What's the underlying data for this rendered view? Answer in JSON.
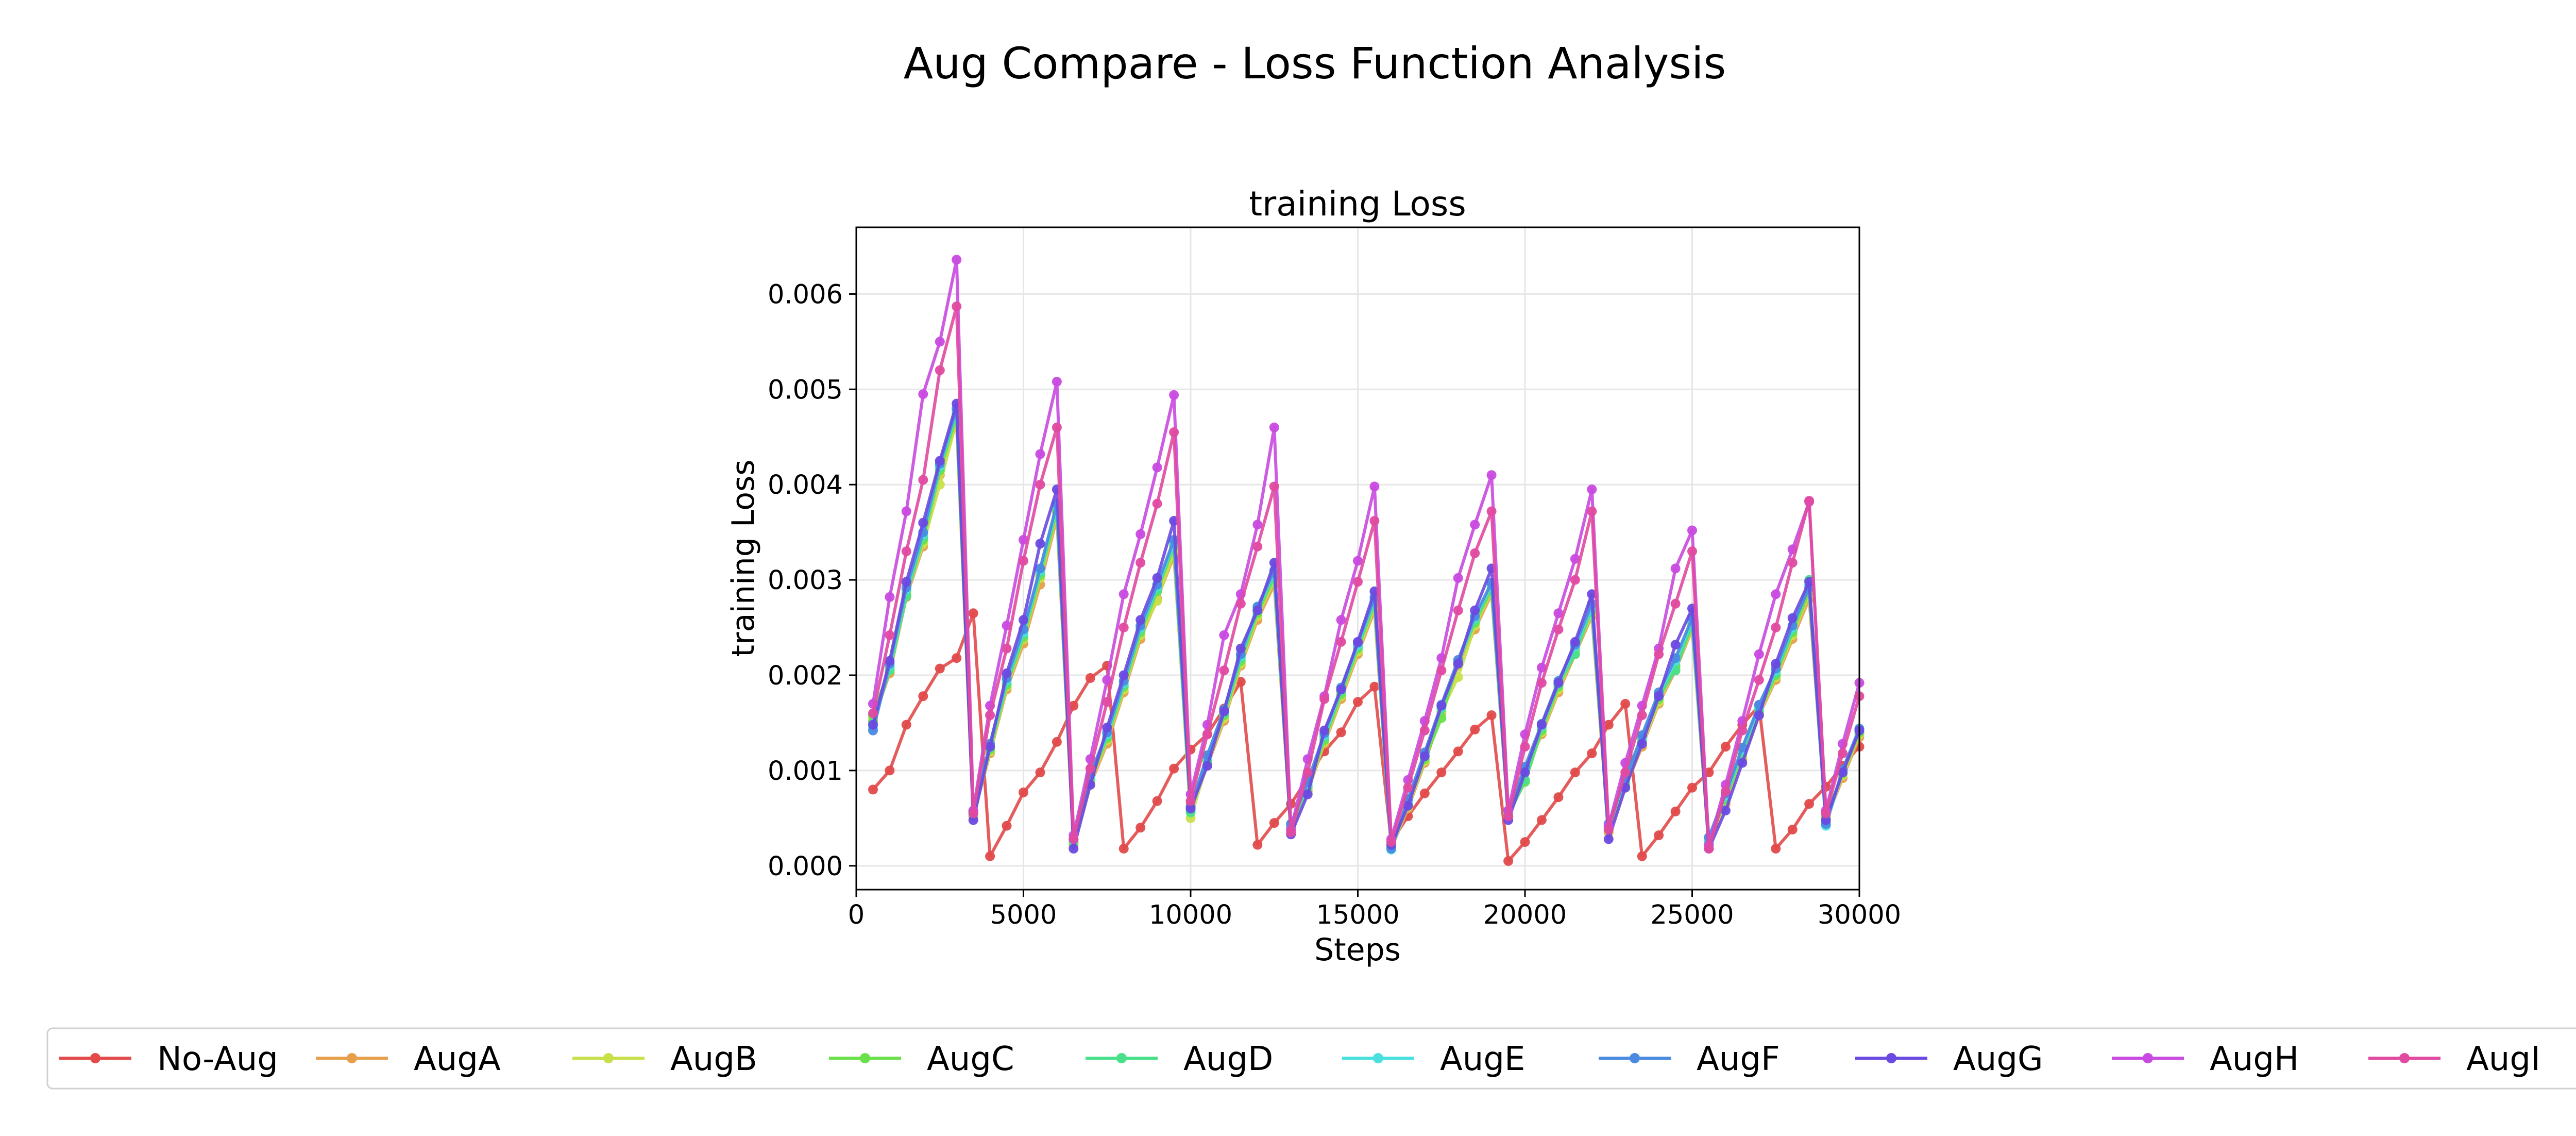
{
  "figure": {
    "suptitle": "Aug Compare - Loss Function Analysis"
  },
  "chart_data": {
    "type": "line",
    "title": "training Loss",
    "xlabel": "Steps",
    "ylabel": "training Loss",
    "xlim": [
      0,
      30000
    ],
    "ylim": [
      -0.00025,
      0.0067
    ],
    "xticks": [
      0,
      5000,
      10000,
      15000,
      20000,
      25000,
      30000
    ],
    "xtick_labels": [
      "0",
      "5000",
      "10000",
      "15000",
      "20000",
      "25000",
      "30000"
    ],
    "yticks": [
      0,
      0.001,
      0.002,
      0.003,
      0.004,
      0.005,
      0.006
    ],
    "ytick_labels": [
      "0.000",
      "0.001",
      "0.002",
      "0.003",
      "0.004",
      "0.005",
      "0.006"
    ],
    "grid": true,
    "legend_position": "bottom",
    "x": [
      500,
      1000,
      1500,
      2000,
      2500,
      3000,
      3500,
      4000,
      4500,
      5000,
      5500,
      6000,
      6500,
      7000,
      7500,
      8000,
      8500,
      9000,
      9500,
      10000,
      10500,
      11000,
      11500,
      12000,
      12500,
      13000,
      13500,
      14000,
      14500,
      15000,
      15500,
      16000,
      16500,
      17000,
      17500,
      18000,
      18500,
      19000,
      19500,
      20000,
      20500,
      21000,
      21500,
      22000,
      22500,
      23000,
      23500,
      24000,
      24500,
      25000,
      25500,
      26000,
      26500,
      27000,
      27500,
      28000,
      28500,
      29000,
      29500,
      30000
    ],
    "series": [
      {
        "name": "No-Aug",
        "color": "#e24a4a",
        "values": [
          0.0008,
          0.001,
          0.00148,
          0.00178,
          0.00207,
          0.00218,
          0.00265,
          0.0001,
          0.00042,
          0.00077,
          0.00098,
          0.0013,
          0.00168,
          0.00197,
          0.0021,
          0.00018,
          0.0004,
          0.00068,
          0.00102,
          0.00122,
          0.00138,
          0.00165,
          0.00193,
          0.00022,
          0.00045,
          0.00065,
          0.00092,
          0.0012,
          0.0014,
          0.00172,
          0.00188,
          0.00025,
          0.00052,
          0.00076,
          0.00098,
          0.0012,
          0.00143,
          0.00158,
          5e-05,
          0.00025,
          0.00048,
          0.00072,
          0.00098,
          0.00118,
          0.00148,
          0.0017,
          0.0001,
          0.00032,
          0.00057,
          0.00082,
          0.00098,
          0.00125,
          0.00148,
          0.00168,
          0.00018,
          0.00038,
          0.00065,
          0.00083,
          0.00105,
          0.00125
        ]
      },
      {
        "name": "AugA",
        "color": "#e6a04b",
        "values": [
          0.00152,
          0.00202,
          0.00282,
          0.00335,
          0.0041,
          0.00465,
          0.00052,
          0.00118,
          0.00185,
          0.00233,
          0.00295,
          0.00365,
          0.00022,
          0.00085,
          0.00128,
          0.00182,
          0.00238,
          0.0028,
          0.00325,
          0.00065,
          0.00105,
          0.00152,
          0.0021,
          0.00258,
          0.00295,
          0.00038,
          0.00078,
          0.00128,
          0.00175,
          0.00222,
          0.00268,
          0.00018,
          0.0006,
          0.00108,
          0.0016,
          0.0021,
          0.00248,
          0.00285,
          0.00052,
          0.00098,
          0.00138,
          0.00182,
          0.00222,
          0.00262,
          0.00035,
          0.00082,
          0.00125,
          0.0017,
          0.00205,
          0.00248,
          0.00022,
          0.00065,
          0.00112,
          0.00158,
          0.00195,
          0.00238,
          0.0028,
          0.00048,
          0.00092,
          0.00135
        ]
      },
      {
        "name": "AugB",
        "color": "#c9e04a",
        "values": [
          0.00155,
          0.00205,
          0.00285,
          0.00338,
          0.004,
          0.00468,
          0.00055,
          0.0012,
          0.00188,
          0.00238,
          0.00302,
          0.0037,
          0.00025,
          0.00088,
          0.00132,
          0.00185,
          0.00242,
          0.00278,
          0.0033,
          0.0005,
          0.00108,
          0.00155,
          0.00212,
          0.00262,
          0.003,
          0.0004,
          0.0008,
          0.0013,
          0.00178,
          0.00225,
          0.00272,
          0.0002,
          0.00062,
          0.0011,
          0.00162,
          0.00198,
          0.00252,
          0.00288,
          0.00055,
          0.001,
          0.0014,
          0.00185,
          0.00225,
          0.00265,
          0.00037,
          0.00085,
          0.00128,
          0.00172,
          0.00208,
          0.0025,
          0.00025,
          0.00068,
          0.00115,
          0.0016,
          0.00198,
          0.00242,
          0.00285,
          0.0005,
          0.00095,
          0.00138
        ]
      },
      {
        "name": "AugC",
        "color": "#6ae04a",
        "values": [
          0.00158,
          0.00208,
          0.00288,
          0.00342,
          0.00415,
          0.00472,
          0.00056,
          0.00122,
          0.0019,
          0.0024,
          0.00305,
          0.00372,
          0.00024,
          0.0009,
          0.00134,
          0.00188,
          0.00245,
          0.00288,
          0.00335,
          0.00058,
          0.0011,
          0.00158,
          0.00215,
          0.00265,
          0.00303,
          0.00042,
          0.00082,
          0.00132,
          0.0018,
          0.00228,
          0.00275,
          0.00021,
          0.00064,
          0.00112,
          0.00155,
          0.00215,
          0.00255,
          0.0029,
          0.00054,
          0.00088,
          0.00142,
          0.00188,
          0.00228,
          0.00268,
          0.00038,
          0.00086,
          0.0013,
          0.00175,
          0.0021,
          0.00252,
          0.00026,
          0.0007,
          0.00118,
          0.00162,
          0.002,
          0.00245,
          0.00288,
          0.00052,
          0.00097,
          0.0014
        ]
      },
      {
        "name": "AugD",
        "color": "#4ae08a",
        "values": [
          0.0015,
          0.00205,
          0.00283,
          0.00345,
          0.00418,
          0.00475,
          0.00054,
          0.00124,
          0.00192,
          0.00243,
          0.00308,
          0.00375,
          0.00026,
          0.00092,
          0.00136,
          0.0019,
          0.00248,
          0.0029,
          0.00338,
          0.00056,
          0.00112,
          0.0016,
          0.00218,
          0.00268,
          0.00305,
          0.00041,
          0.00084,
          0.00135,
          0.00183,
          0.0023,
          0.00278,
          0.00019,
          0.00066,
          0.00115,
          0.00165,
          0.00212,
          0.00258,
          0.00293,
          0.00052,
          0.0009,
          0.00145,
          0.0019,
          0.00222,
          0.0027,
          0.0004,
          0.00088,
          0.00133,
          0.00178,
          0.00205,
          0.00255,
          0.00024,
          0.00072,
          0.0012,
          0.00165,
          0.00202,
          0.00248,
          0.003,
          0.00045,
          0.00099,
          0.00142
        ]
      },
      {
        "name": "AugE",
        "color": "#4ae0e0",
        "values": [
          0.00145,
          0.0021,
          0.0029,
          0.00348,
          0.0042,
          0.00478,
          0.00058,
          0.00126,
          0.00195,
          0.00245,
          0.0031,
          0.00378,
          0.00027,
          0.00094,
          0.00138,
          0.00192,
          0.0025,
          0.00293,
          0.0034,
          0.0006,
          0.00114,
          0.00162,
          0.0022,
          0.0027,
          0.00308,
          0.00043,
          0.00086,
          0.00137,
          0.00185,
          0.00232,
          0.0028,
          0.00017,
          0.00068,
          0.00117,
          0.00167,
          0.00214,
          0.0026,
          0.00295,
          0.00056,
          0.00102,
          0.00147,
          0.00192,
          0.0023,
          0.00272,
          0.00042,
          0.0009,
          0.00135,
          0.0018,
          0.00215,
          0.00258,
          0.00028,
          0.00074,
          0.00122,
          0.00167,
          0.00205,
          0.0025,
          0.00295,
          0.00042,
          0.001,
          0.00143
        ]
      },
      {
        "name": "AugF",
        "color": "#4a8ae0",
        "values": [
          0.00142,
          0.00212,
          0.00292,
          0.0035,
          0.00422,
          0.0048,
          0.00057,
          0.00128,
          0.00197,
          0.00248,
          0.00312,
          0.0038,
          0.00028,
          0.00096,
          0.0014,
          0.00194,
          0.00252,
          0.00295,
          0.00342,
          0.00062,
          0.00116,
          0.00164,
          0.00222,
          0.00272,
          0.0031,
          0.00044,
          0.00088,
          0.00139,
          0.00187,
          0.00234,
          0.00282,
          0.00018,
          0.0007,
          0.00119,
          0.00169,
          0.00216,
          0.00262,
          0.00297,
          0.00058,
          0.00104,
          0.00149,
          0.00194,
          0.00232,
          0.00275,
          0.00044,
          0.00092,
          0.00137,
          0.00182,
          0.00218,
          0.0026,
          0.0003,
          0.00076,
          0.00124,
          0.00169,
          0.00207,
          0.00252,
          0.00292,
          0.00044,
          0.00101,
          0.00144
        ]
      },
      {
        "name": "AugG",
        "color": "#6a4ae0",
        "values": [
          0.00148,
          0.00215,
          0.00298,
          0.0036,
          0.00425,
          0.00485,
          0.00048,
          0.00125,
          0.00202,
          0.00258,
          0.00338,
          0.00395,
          0.00018,
          0.00085,
          0.00145,
          0.002,
          0.00258,
          0.00302,
          0.00362,
          0.0006,
          0.00105,
          0.00162,
          0.00228,
          0.00268,
          0.00318,
          0.00033,
          0.00075,
          0.00142,
          0.00185,
          0.00235,
          0.00288,
          0.00022,
          0.00063,
          0.00115,
          0.00168,
          0.00212,
          0.00268,
          0.00312,
          0.00048,
          0.00098,
          0.00148,
          0.00192,
          0.00235,
          0.00285,
          0.00028,
          0.00082,
          0.00128,
          0.00178,
          0.00232,
          0.0027,
          0.00018,
          0.00058,
          0.00108,
          0.00158,
          0.00212,
          0.0026,
          0.00298,
          0.00048,
          0.00098,
          0.00142
        ]
      },
      {
        "name": "AugH",
        "color": "#c94ae0",
        "values": [
          0.0017,
          0.00282,
          0.00372,
          0.00495,
          0.0055,
          0.00636,
          0.00058,
          0.00168,
          0.00252,
          0.00342,
          0.00432,
          0.00508,
          0.00032,
          0.00112,
          0.00195,
          0.00285,
          0.00348,
          0.00418,
          0.00494,
          0.00075,
          0.00148,
          0.00242,
          0.00285,
          0.00358,
          0.0046,
          0.00038,
          0.00112,
          0.00178,
          0.00258,
          0.0032,
          0.00398,
          0.00028,
          0.0009,
          0.00152,
          0.00218,
          0.00302,
          0.00358,
          0.0041,
          0.00058,
          0.00138,
          0.00208,
          0.00265,
          0.00322,
          0.00395,
          0.00042,
          0.00108,
          0.00168,
          0.00228,
          0.00312,
          0.00352,
          0.00022,
          0.00085,
          0.00152,
          0.00222,
          0.00285,
          0.00332,
          0.00382,
          0.00058,
          0.00128,
          0.00192
        ]
      },
      {
        "name": "AugI",
        "color": "#e04aa0",
        "values": [
          0.0016,
          0.00242,
          0.0033,
          0.00405,
          0.0052,
          0.00587,
          0.00055,
          0.00158,
          0.00228,
          0.0032,
          0.004,
          0.0046,
          0.00028,
          0.00102,
          0.00172,
          0.0025,
          0.00318,
          0.0038,
          0.00455,
          0.00068,
          0.00138,
          0.00205,
          0.00275,
          0.00335,
          0.00398,
          0.00035,
          0.00098,
          0.00175,
          0.00235,
          0.00298,
          0.00362,
          0.00025,
          0.00082,
          0.00142,
          0.00205,
          0.00268,
          0.00328,
          0.00372,
          0.00052,
          0.00125,
          0.00192,
          0.00248,
          0.003,
          0.00372,
          0.00038,
          0.00098,
          0.00158,
          0.00222,
          0.00275,
          0.0033,
          0.00018,
          0.00078,
          0.00142,
          0.00195,
          0.0025,
          0.00318,
          0.00383,
          0.00055,
          0.00118,
          0.00178
        ]
      }
    ]
  }
}
